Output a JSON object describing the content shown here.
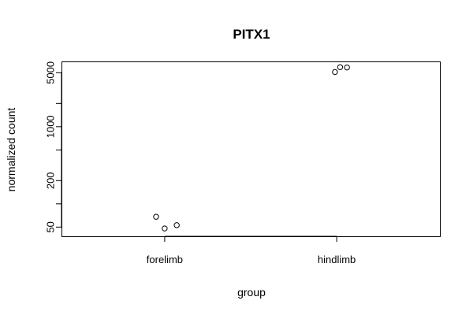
{
  "chart_data": {
    "type": "scatter",
    "title": "PITX1",
    "xlabel": "group",
    "ylabel": "normalized count",
    "categories": [
      "forelimb",
      "hindlimb"
    ],
    "y_scale": "log",
    "ylim": [
      38,
      7000
    ],
    "y_ticks": [
      50,
      100,
      200,
      500,
      1000,
      2000,
      5000
    ],
    "y_tick_labels": [
      "50",
      "",
      "200",
      "",
      "1000",
      "",
      "5000"
    ],
    "grid": false,
    "legend": "none",
    "points": [
      {
        "category": "forelimb",
        "jitter": -0.05,
        "value": 68
      },
      {
        "category": "forelimb",
        "jitter": 0.0,
        "value": 48
      },
      {
        "category": "forelimb",
        "jitter": 0.07,
        "value": 53
      },
      {
        "category": "hindlimb",
        "jitter": -0.01,
        "value": 5100
      },
      {
        "category": "hindlimb",
        "jitter": 0.02,
        "value": 5900
      },
      {
        "category": "hindlimb",
        "jitter": 0.06,
        "value": 5850
      }
    ]
  }
}
